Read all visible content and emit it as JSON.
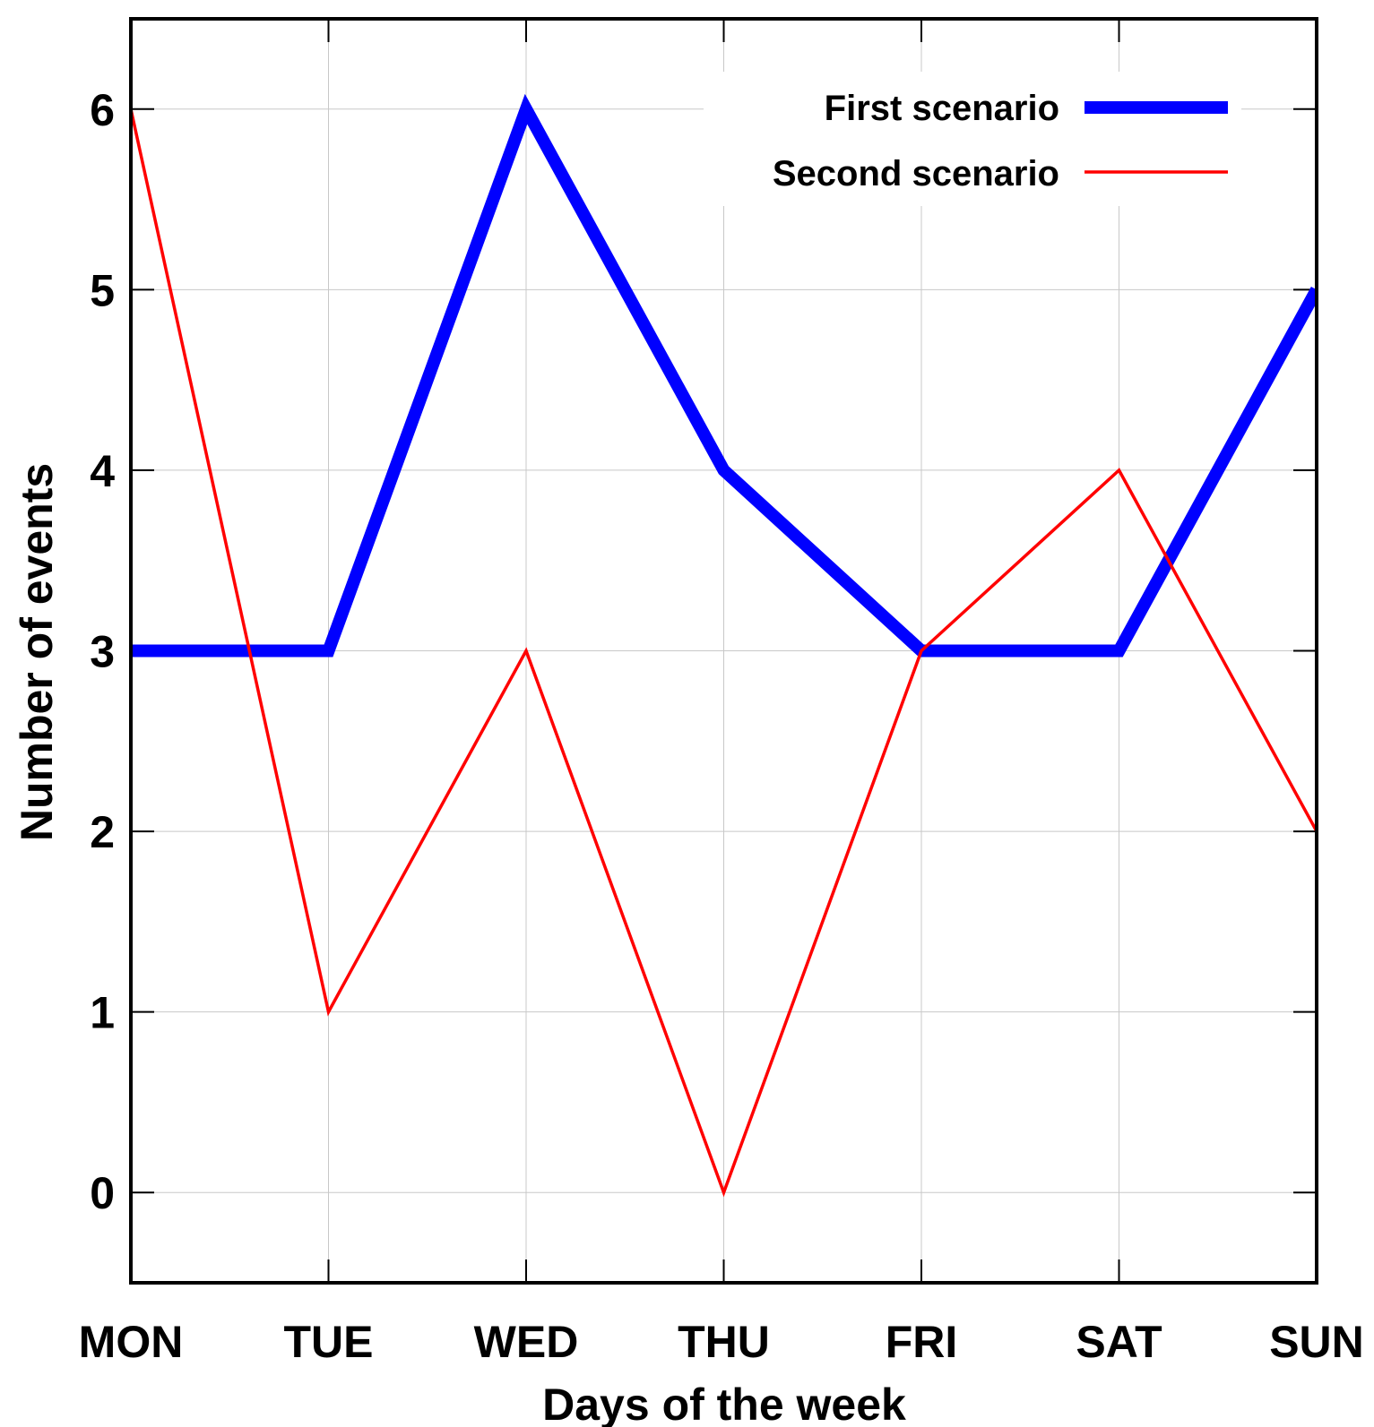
{
  "chart_data": {
    "type": "line",
    "categories": [
      "MON",
      "TUE",
      "WED",
      "THU",
      "FRI",
      "SAT",
      "SUN"
    ],
    "series": [
      {
        "name": "First scenario",
        "values": [
          3,
          3,
          6,
          4,
          3,
          3,
          5
        ],
        "color": "#0000ff",
        "line_weight": "thick"
      },
      {
        "name": "Second scenario",
        "values": [
          6,
          1,
          3,
          0,
          3,
          4,
          2
        ],
        "color": "#ff0000",
        "line_weight": "thin"
      }
    ],
    "title": "",
    "xlabel": "Days of the week",
    "ylabel": "Number of events",
    "ylim": [
      -0.5,
      6.5
    ],
    "yticks": [
      0,
      1,
      2,
      3,
      4,
      5,
      6
    ],
    "grid": true,
    "legend_position": "top-right"
  }
}
